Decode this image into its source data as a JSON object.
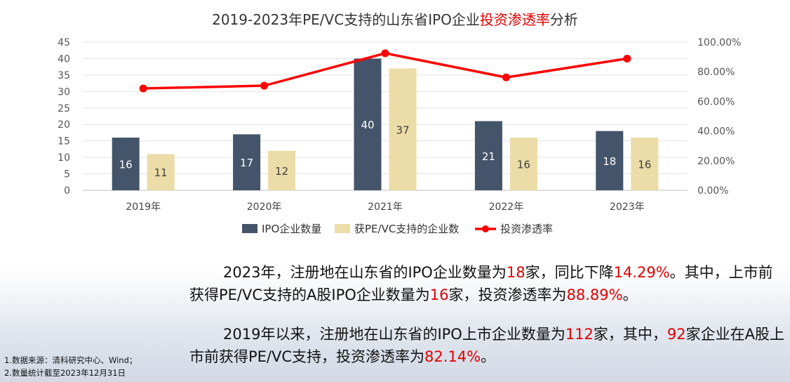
{
  "title": {
    "prefix": "2019-2023年PE/VC支持的山东省IPO企业",
    "highlight": "投资渗透率",
    "suffix": "分析"
  },
  "chart_data": {
    "type": "bar",
    "categories": [
      "2019年",
      "2020年",
      "2021年",
      "2022年",
      "2023年"
    ],
    "series": [
      {
        "name": "IPO企业数量",
        "type": "bar",
        "axis": "left",
        "color": "#44546a",
        "values": [
          16,
          17,
          40,
          21,
          18
        ]
      },
      {
        "name": "获PE/VC支持的企业数",
        "type": "bar",
        "axis": "left",
        "color": "#ecdca7",
        "values": [
          11,
          12,
          37,
          16,
          16
        ]
      },
      {
        "name": "投资渗透率",
        "type": "line",
        "axis": "right",
        "color": "#ff0000",
        "values": [
          68.75,
          70.59,
          92.5,
          76.19,
          88.89
        ]
      }
    ],
    "y_left": {
      "min": 0,
      "max": 45,
      "ticks": [
        "0",
        "5",
        "10",
        "15",
        "20",
        "25",
        "30",
        "35",
        "40",
        "45"
      ]
    },
    "y_right": {
      "min": 0,
      "max": 100,
      "ticks": [
        "0.00%",
        "20.00%",
        "40.00%",
        "60.00%",
        "80.00%",
        "100.00%"
      ]
    },
    "grid": true,
    "legend_position": "bottom"
  },
  "summary": {
    "p1": {
      "a": "2023年，注册地在山东省的IPO企业数量为",
      "n1": "18",
      "b": "家，同比下降",
      "n2": "14.29%",
      "c": "。其中，上市前获得PE/VC支持的A股IPO企业数量为",
      "n3": "16",
      "d": "家，投资渗透率为",
      "n4": "88.89%",
      "e": "。"
    },
    "p2": {
      "a": "2019年以来，注册地在山东省的IPO上市企业数量为",
      "n1": "112",
      "b": "家，其中，",
      "n2": "92",
      "c": "家企业在A股上市前获得PE/VC支持，投资渗透率为",
      "n3": "82.14%",
      "d": "。"
    }
  },
  "notes": {
    "line1": "1.数据来源：清科研究中心、Wind；",
    "line2": "2.数量统计截至2023年12月31日"
  }
}
